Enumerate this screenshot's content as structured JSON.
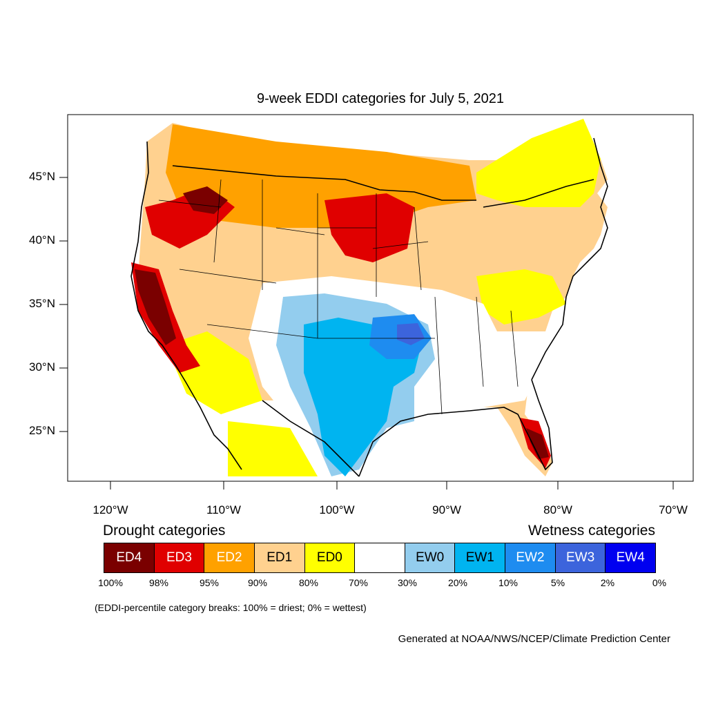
{
  "title": "9-week EDDI categories for July 5, 2021",
  "lat_labels": [
    "45°N",
    "40°N",
    "35°N",
    "30°N",
    "25°N"
  ],
  "lon_labels": [
    "120°W",
    "110°W",
    "100°W",
    "90°W",
    "80°W",
    "70°W"
  ],
  "legend": {
    "drought_title": "Drought categories",
    "wetness_title": "Wetness categories",
    "categories": [
      {
        "label": "ED4",
        "color": "#7a0000",
        "text_color": "#ffffff"
      },
      {
        "label": "ED3",
        "color": "#e00000",
        "text_color": "#ffffff"
      },
      {
        "label": "ED2",
        "color": "#ffa100",
        "text_color": "#ffffff"
      },
      {
        "label": "ED1",
        "color": "#ffd18f",
        "text_color": "#000000"
      },
      {
        "label": "ED0",
        "color": "#ffff00",
        "text_color": "#000000"
      },
      {
        "label": "",
        "color": "#ffffff",
        "text_color": "#000000"
      },
      {
        "label": "EW0",
        "color": "#93cdee",
        "text_color": "#000000"
      },
      {
        "label": "EW1",
        "color": "#00b4f0",
        "text_color": "#000000"
      },
      {
        "label": "EW2",
        "color": "#1e8cf0",
        "text_color": "#ffffff"
      },
      {
        "label": "EW3",
        "color": "#3c64dc",
        "text_color": "#ffffff"
      },
      {
        "label": "EW4",
        "color": "#0000f0",
        "text_color": "#ffffff"
      }
    ],
    "percent_breaks": [
      "100%",
      "98%",
      "95%",
      "90%",
      "80%",
      "70%",
      "30%",
      "20%",
      "10%",
      "5%",
      "2%",
      "0%"
    ]
  },
  "breaks_note": "(EDDI-percentile category breaks: 100% = driest; 0% = wettest)",
  "credit": "Generated at NOAA/NWS/NCEP/Climate Prediction Center"
}
